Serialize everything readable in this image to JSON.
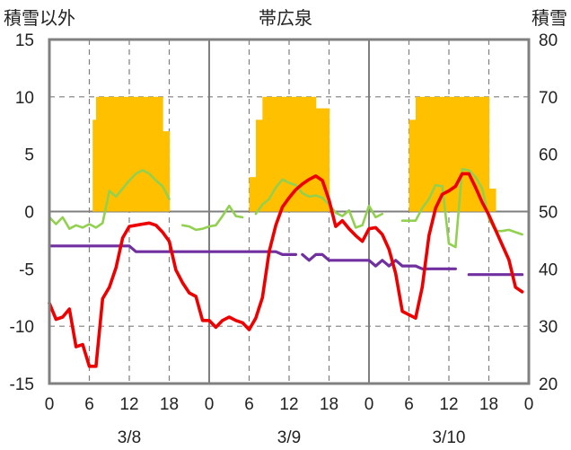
{
  "chart_data": {
    "type": "line",
    "title": "帯広泉",
    "left_axis_label": "積雪以外",
    "right_axis_label": "積雪",
    "left_ylim": [
      -15,
      15
    ],
    "left_yticks": [
      "15",
      "10",
      "5",
      "0",
      "-5",
      "-10",
      "-15"
    ],
    "right_ylim": [
      20,
      80
    ],
    "right_yticks": [
      "80",
      "70",
      "60",
      "50",
      "40",
      "30",
      "20"
    ],
    "xlim": [
      0,
      72
    ],
    "xtick_labels": [
      "0",
      "6",
      "12",
      "18",
      "0",
      "6",
      "12",
      "18",
      "0",
      "6",
      "12",
      "18",
      "0"
    ],
    "day_labels": [
      "3/8",
      "3/9",
      "3/10"
    ],
    "grid": "vertical dashed every 6 hours, solid at day boundaries, dashed at 10-unit left-axis steps",
    "colors": {
      "precip_bar": "#FFC000",
      "temperature": "#EE0000",
      "humidity_like": "#92D050",
      "snow_depth": "#7030A0",
      "frame": "#808080"
    },
    "series": [
      {
        "type": "bar",
        "axis": "left",
        "values": [
          [
            6.5,
            8.0
          ],
          [
            7.0,
            10.0
          ],
          [
            8.0,
            10.0
          ],
          [
            9.0,
            10.0
          ],
          [
            10.0,
            10.0
          ],
          [
            11.0,
            10.0
          ],
          [
            12.0,
            10.0
          ],
          [
            13.0,
            10.0
          ],
          [
            14.0,
            10.0
          ],
          [
            15.0,
            10.0
          ],
          [
            16.0,
            10.0
          ],
          [
            17.0,
            7.0
          ],
          [
            30.0,
            3.0
          ],
          [
            31.0,
            8.0
          ],
          [
            32.0,
            10.0
          ],
          [
            33.0,
            10.0
          ],
          [
            34.0,
            10.0
          ],
          [
            35.0,
            10.0
          ],
          [
            36.0,
            10.0
          ],
          [
            37.0,
            10.0
          ],
          [
            38.0,
            10.0
          ],
          [
            39.0,
            10.0
          ],
          [
            40.0,
            9.0
          ],
          [
            41.0,
            9.0
          ],
          [
            54.0,
            8.0
          ],
          [
            55.0,
            10.0
          ],
          [
            56.0,
            10.0
          ],
          [
            57.0,
            10.0
          ],
          [
            58.0,
            10.0
          ],
          [
            59.0,
            10.0
          ],
          [
            60.0,
            10.0
          ],
          [
            61.0,
            10.0
          ],
          [
            62.0,
            10.0
          ],
          [
            63.0,
            10.0
          ],
          [
            64.0,
            10.0
          ],
          [
            65.0,
            10.0
          ],
          [
            66.0,
            2.0
          ]
        ]
      },
      {
        "type": "line",
        "axis": "left",
        "values": [
          [
            0,
            -8.0
          ],
          [
            1,
            -9.4
          ],
          [
            2,
            -9.2
          ],
          [
            3,
            -8.5
          ],
          [
            4,
            -11.8
          ],
          [
            5,
            -11.6
          ],
          [
            6,
            -13.5
          ],
          [
            7,
            -13.5
          ],
          [
            8,
            -7.6
          ],
          [
            9,
            -6.6
          ],
          [
            10,
            -4.9
          ],
          [
            11,
            -2.3
          ],
          [
            12,
            -1.3
          ],
          [
            13,
            -1.2
          ],
          [
            14,
            -1.1
          ],
          [
            15,
            -1.0
          ],
          [
            16,
            -1.2
          ],
          [
            17,
            -1.8
          ],
          [
            18,
            -2.6
          ],
          [
            19,
            -5.1
          ],
          [
            20,
            -6.2
          ],
          [
            21,
            -7.1
          ],
          [
            22,
            -7.4
          ],
          [
            23,
            -9.5
          ],
          [
            24,
            -9.5
          ],
          [
            25,
            -10.1
          ],
          [
            26,
            -9.5
          ],
          [
            27,
            -9.2
          ],
          [
            28,
            -9.5
          ],
          [
            29,
            -9.7
          ],
          [
            30,
            -10.3
          ],
          [
            31,
            -9.3
          ],
          [
            32,
            -7.5
          ],
          [
            33,
            -3.5
          ],
          [
            34,
            -1.2
          ],
          [
            35,
            0.4
          ],
          [
            36,
            1.2
          ],
          [
            37,
            1.9
          ],
          [
            38,
            2.4
          ],
          [
            39,
            2.8
          ],
          [
            40,
            3.1
          ],
          [
            41,
            2.7
          ],
          [
            42,
            1.0
          ],
          [
            43,
            -1.3
          ],
          [
            44,
            -0.8
          ],
          [
            45,
            -1.5
          ],
          [
            46,
            -2.1
          ],
          [
            47,
            -2.6
          ],
          [
            48,
            -1.5
          ],
          [
            49,
            -1.4
          ],
          [
            50,
            -2.0
          ],
          [
            51,
            -3.3
          ],
          [
            52,
            -5.4
          ],
          [
            53,
            -8.7
          ],
          [
            54,
            -9.0
          ],
          [
            55,
            -9.3
          ],
          [
            56,
            -6.6
          ],
          [
            57,
            -2.1
          ],
          [
            58,
            0.3
          ],
          [
            59,
            1.5
          ],
          [
            60,
            1.8
          ],
          [
            61,
            2.2
          ],
          [
            62,
            3.3
          ],
          [
            63,
            3.3
          ],
          [
            64,
            2.1
          ],
          [
            65,
            0.8
          ],
          [
            66,
            -0.3
          ],
          [
            67,
            -1.6
          ],
          [
            68,
            -2.9
          ],
          [
            69,
            -4.2
          ],
          [
            70,
            -6.6
          ],
          [
            71,
            -7.0
          ]
        ]
      },
      {
        "type": "line",
        "axis": "left",
        "values": [
          [
            0,
            -0.5
          ],
          [
            1,
            -1.1
          ],
          [
            2,
            -0.5
          ],
          [
            3,
            -1.5
          ],
          [
            4,
            -1.2
          ],
          [
            5,
            -1.4
          ],
          [
            6,
            -1.1
          ],
          [
            7,
            -1.4
          ],
          [
            8,
            -1.0
          ],
          [
            9,
            1.8
          ],
          [
            10,
            1.3
          ],
          [
            11,
            2.0
          ],
          [
            12,
            2.7
          ],
          [
            13,
            3.3
          ],
          [
            14,
            3.6
          ],
          [
            15,
            3.3
          ],
          [
            16,
            2.7
          ],
          [
            17,
            2.2
          ],
          [
            18,
            1.1
          ],
          [
            null,
            null
          ],
          [
            20,
            -1.2
          ],
          [
            21,
            -1.3
          ],
          [
            22,
            -1.6
          ],
          [
            23,
            -1.5
          ],
          [
            24,
            -1.3
          ],
          [
            25,
            -1.2
          ],
          [
            26,
            -0.4
          ],
          [
            27,
            0.5
          ],
          [
            28,
            -0.4
          ],
          [
            29,
            -0.5
          ],
          [
            null,
            null
          ],
          [
            31,
            -0.2
          ],
          [
            32,
            0.6
          ],
          [
            33,
            1.1
          ],
          [
            34,
            2.1
          ],
          [
            35,
            2.8
          ],
          [
            36,
            2.5
          ],
          [
            37,
            2.3
          ],
          [
            38,
            1.6
          ],
          [
            39,
            1.3
          ],
          [
            40,
            1.4
          ],
          [
            41,
            1.2
          ],
          [
            42,
            0.6
          ],
          [
            43,
            -0.1
          ],
          [
            44,
            -0.4
          ],
          [
            45,
            0.1
          ],
          [
            46,
            -1.4
          ],
          [
            47,
            -1.2
          ],
          [
            48,
            0.5
          ],
          [
            49,
            -0.5
          ],
          [
            50,
            -0.2
          ],
          [
            null,
            null
          ],
          [
            53,
            -0.8
          ],
          [
            54,
            -0.8
          ],
          [
            55,
            -0.8
          ],
          [
            56,
            0.3
          ],
          [
            57,
            1.1
          ],
          [
            58,
            2.3
          ],
          [
            59,
            2.2
          ],
          [
            60,
            -2.8
          ],
          [
            61,
            -3.1
          ],
          [
            62,
            3.7
          ],
          [
            63,
            3.6
          ],
          [
            64,
            3.0
          ],
          [
            65,
            2.0
          ],
          [
            66,
            -0.6
          ],
          [
            67,
            -1.7
          ],
          [
            68,
            -1.7
          ],
          [
            69,
            -1.6
          ],
          [
            70,
            -1.8
          ],
          [
            71,
            -2.0
          ]
        ]
      },
      {
        "type": "line",
        "axis": "right",
        "values": [
          [
            0,
            44
          ],
          [
            12,
            44
          ],
          [
            13,
            43
          ],
          [
            28,
            43
          ],
          [
            34,
            43
          ],
          [
            35,
            42.5
          ],
          [
            37,
            42.5
          ],
          [
            null,
            null
          ],
          [
            38,
            42.5
          ],
          [
            39,
            41.5
          ],
          [
            40,
            42.5
          ],
          [
            41,
            42.5
          ],
          [
            42,
            41.5
          ],
          [
            48,
            41.5
          ],
          [
            49,
            40.5
          ],
          [
            50,
            41.5
          ],
          [
            51,
            40.5
          ],
          [
            52,
            41.5
          ],
          [
            53,
            40.5
          ],
          [
            55,
            40.5
          ],
          [
            56,
            40
          ],
          [
            61,
            40
          ],
          [
            null,
            null
          ],
          [
            63,
            39
          ],
          [
            71,
            39
          ]
        ]
      }
    ]
  }
}
